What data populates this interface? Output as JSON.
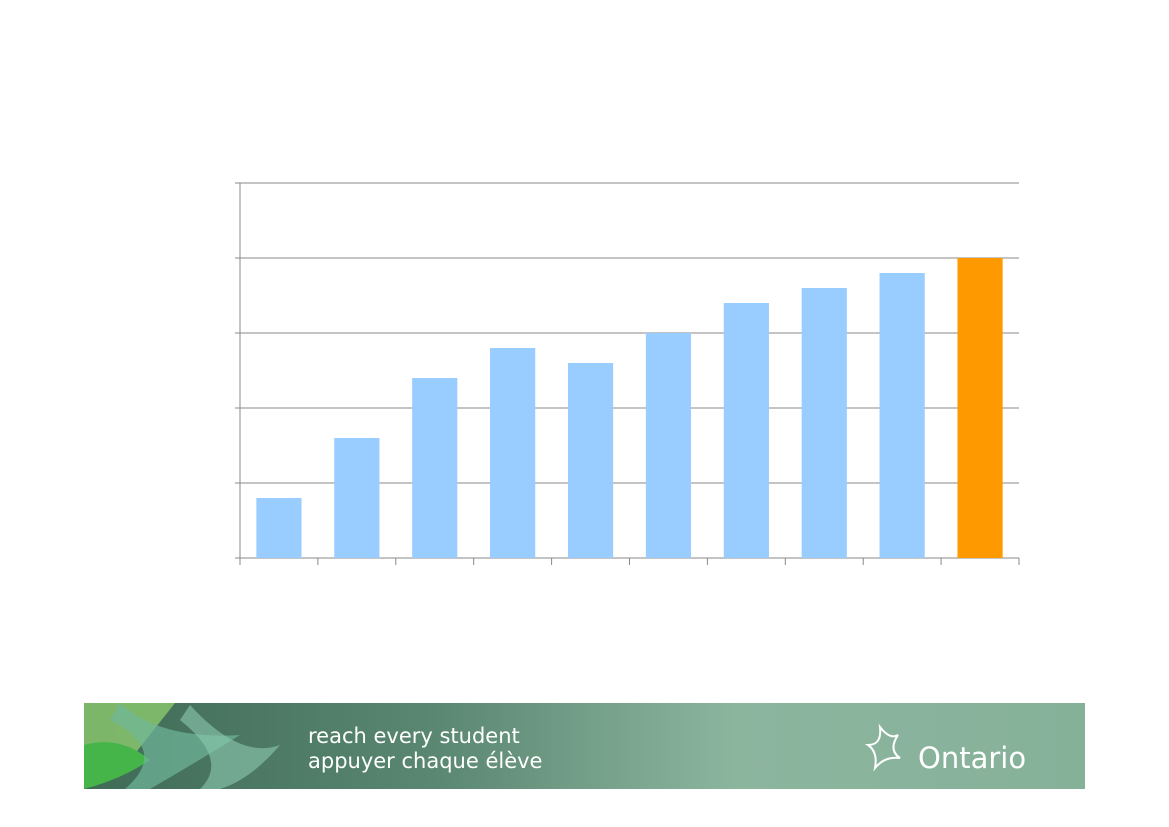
{
  "chart_data": {
    "type": "bar",
    "categories": [
      null,
      null,
      null,
      null,
      null,
      null,
      null,
      null,
      null,
      null
    ],
    "values": [
      0.8,
      1.6,
      2.4,
      2.8,
      2.6,
      3.0,
      3.4,
      3.6,
      3.8,
      4.0
    ],
    "colors": [
      "#99ccff",
      "#99ccff",
      "#99ccff",
      "#99ccff",
      "#99ccff",
      "#99ccff",
      "#99ccff",
      "#99ccff",
      "#99ccff",
      "#ff9900"
    ],
    "ylim": [
      0,
      5
    ],
    "yticks": [
      0,
      1,
      2,
      3,
      4,
      5
    ],
    "grid": true
  },
  "footer": {
    "tagline_en": "reach every student",
    "tagline_fr": "appuyer chaque élève",
    "logo_text": "Ontario"
  }
}
